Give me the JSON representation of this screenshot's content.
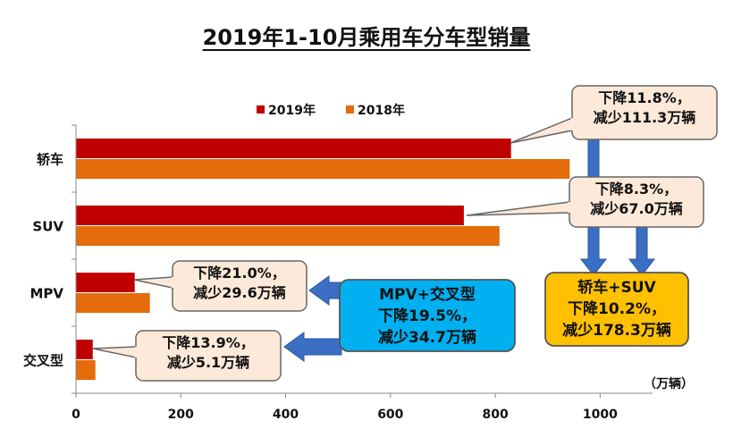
{
  "title": "2019年1-10月乘用车分车型销量",
  "colors": {
    "y2019": "#c00000",
    "y2018": "#e46c0a",
    "callout_fill": "#fde9d9",
    "callout_blue": "#00b0f0",
    "callout_gold": "#ffc000",
    "arrow_blue": "#3a6fc4"
  },
  "chart_data": {
    "type": "bar",
    "orientation": "horizontal",
    "title": "2019年1-10月乘用车分车型销量",
    "categories": [
      "轿车",
      "SUV",
      "MPV",
      "交叉型"
    ],
    "series": [
      {
        "name": "2019年",
        "values": [
          830,
          740,
          112,
          32
        ]
      },
      {
        "name": "2018年",
        "values": [
          942,
          808,
          141,
          37
        ]
      }
    ],
    "xlim": [
      0,
      1100
    ],
    "xticks": [
      0,
      200,
      400,
      600,
      800,
      1000
    ],
    "xticklabels": [
      "0",
      "200",
      "400",
      "600",
      "800",
      "1000"
    ],
    "unit_label": "（万辆）",
    "legend": [
      "2019年",
      "2018年"
    ],
    "legend_position": "top"
  },
  "callouts": {
    "sedan": [
      "下降11.8%，",
      "减少111.3万辆"
    ],
    "suv": [
      "下降8.3%，",
      "减少67.0万辆"
    ],
    "mpv": [
      "下降21.0%，",
      "减少29.6万辆"
    ],
    "crossover": [
      "下降13.9%，",
      "减少5.1万辆"
    ],
    "mpv_cross": [
      "MPV+交叉型",
      "下降19.5%，",
      "减少34.7万辆"
    ],
    "sedan_suv": [
      "轿车+SUV",
      "下降10.2%，",
      "减少178.3万辆"
    ]
  }
}
